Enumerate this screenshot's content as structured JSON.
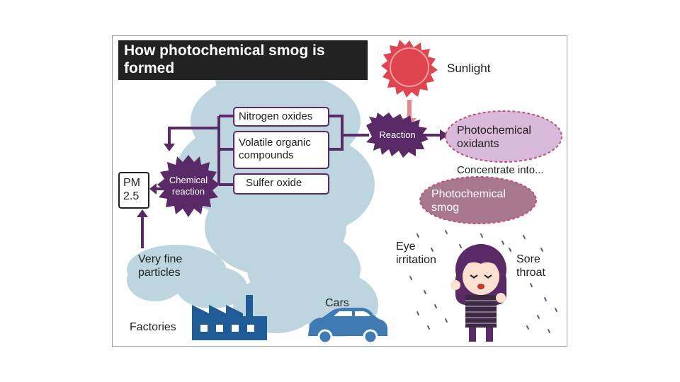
{
  "title": "How photochemical smog is formed",
  "labels": {
    "sunlight": "Sunlight",
    "nitrogen_oxides": "Nitrogen oxides",
    "voc": "Volatile organic compounds",
    "sulfer_oxide": "Sulfer oxide",
    "reaction": "Reaction",
    "chemical_reaction": "Chemical reaction",
    "pm25": "PM 2.5",
    "photochemical_oxidants": "Photochemical oxidants",
    "concentrate_into": "Concentrate into...",
    "photochemical_smog": "Photochemical smog",
    "very_fine_particles": "Very fine particles",
    "eye_irritation": "Eye irritation",
    "sore_throat": "Sore throat",
    "factories": "Factories",
    "cars": "Cars"
  },
  "colors": {
    "smog_cloud": "#b9d3dd",
    "arrow_purple": "#5a2a66",
    "sun_red": "#e0454f",
    "sun_arrow": "#e88890",
    "oxidant_fill": "#d9b9d9",
    "smog_fill": "#a8788f",
    "factory_blue": "#1f5b96",
    "car_blue": "#3f7ab3"
  }
}
